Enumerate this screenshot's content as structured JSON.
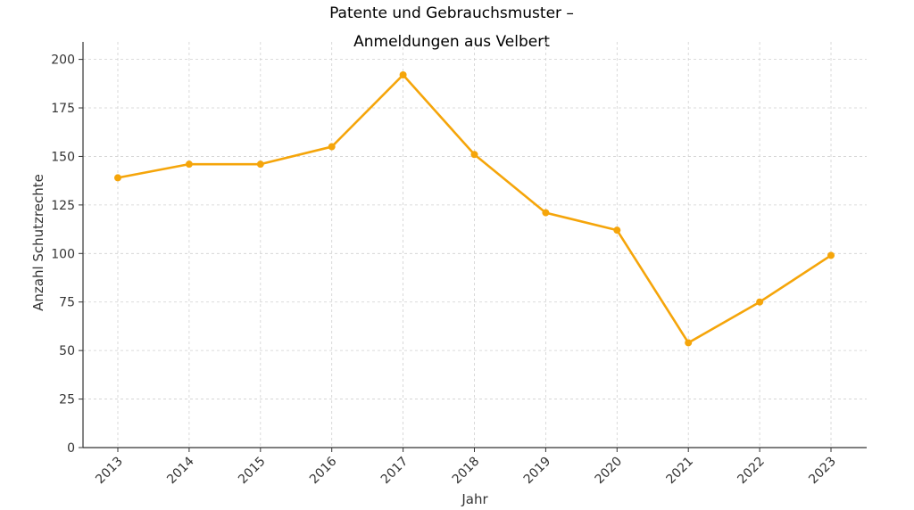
{
  "chart_data": {
    "type": "line",
    "title_line1": "Patente und Gebrauchsmuster –",
    "title_line2": "Anmeldungen aus Velbert",
    "xlabel": "Jahr",
    "ylabel": "Anzahl Schutzrechte",
    "categories": [
      "2013",
      "2014",
      "2015",
      "2016",
      "2017",
      "2018",
      "2019",
      "2020",
      "2021",
      "2022",
      "2023"
    ],
    "series": [
      {
        "values": [
          139,
          146,
          146,
          155,
          192,
          151,
          121,
          112,
          54,
          75,
          99
        ]
      }
    ],
    "yticks": [
      0,
      25,
      50,
      75,
      100,
      125,
      150,
      175,
      200
    ],
    "ylim": [
      0,
      209
    ],
    "grid": true,
    "line_color": "#f5a50a"
  }
}
